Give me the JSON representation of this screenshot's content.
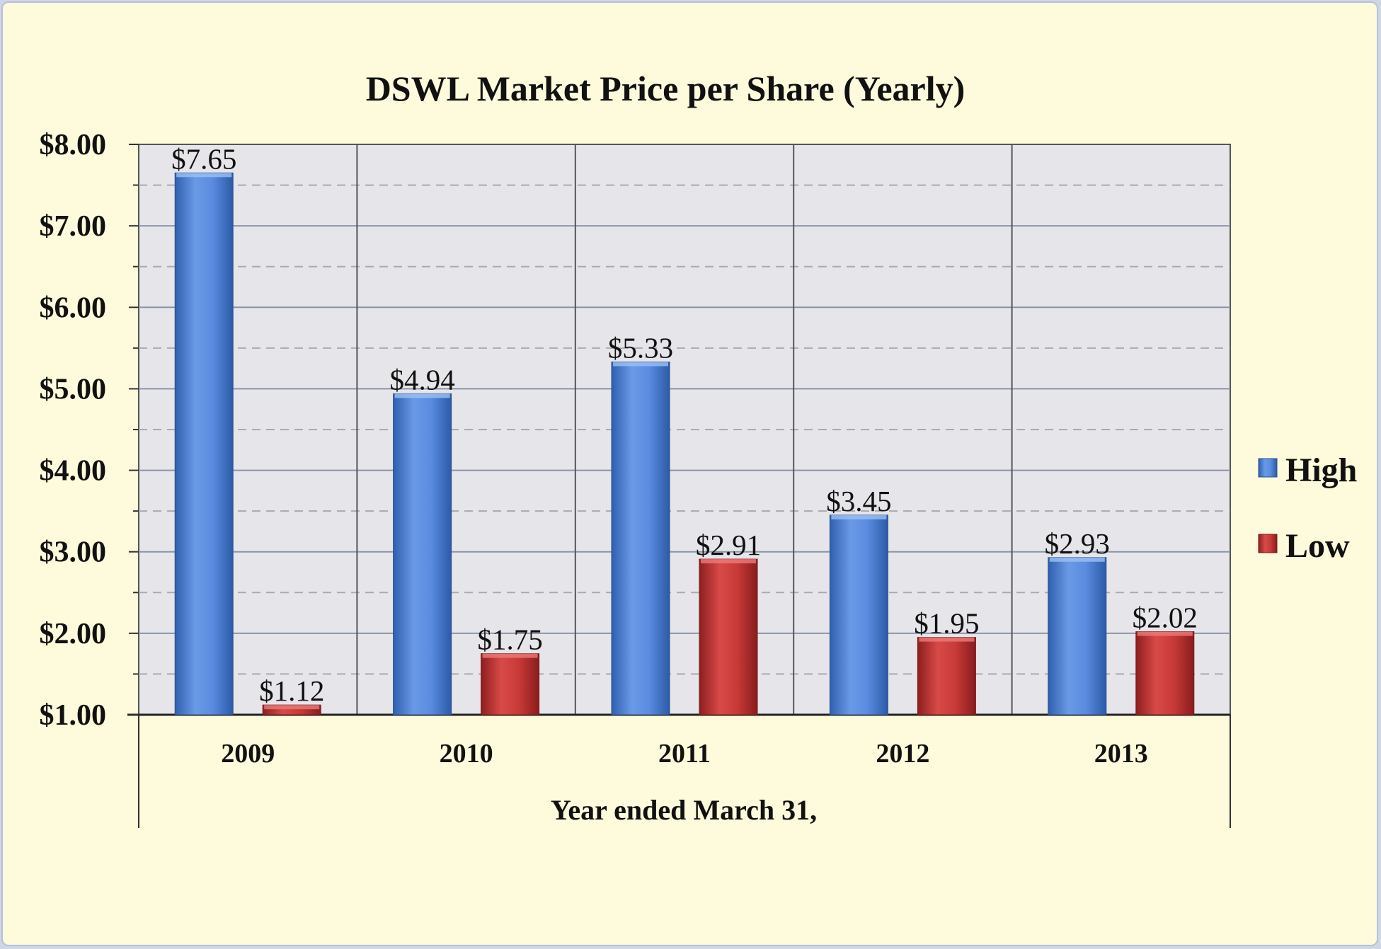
{
  "chart_data": {
    "type": "bar",
    "title": "DSWL Market Price per Share (Yearly)",
    "xlabel": "Year ended March 31,",
    "ylabel": "",
    "categories": [
      "2009",
      "2010",
      "2011",
      "2012",
      "2013"
    ],
    "series": [
      {
        "name": "High",
        "values": [
          7.65,
          4.94,
          5.33,
          3.45,
          2.93
        ],
        "labels": [
          "$7.65",
          "$4.94",
          "$5.33",
          "$3.45",
          "$2.93"
        ],
        "color": "#4a7fd4"
      },
      {
        "name": "Low",
        "values": [
          1.12,
          1.75,
          2.91,
          1.95,
          2.02
        ],
        "labels": [
          "$1.12",
          "$1.75",
          "$2.91",
          "$1.95",
          "$2.02"
        ],
        "color": "#c0302f"
      }
    ],
    "ylim": [
      1,
      8
    ],
    "yticks": [
      1,
      2,
      3,
      4,
      5,
      6,
      7,
      8
    ],
    "ytick_labels": [
      "$1.00",
      "$2.00",
      "$3.00",
      "$4.00",
      "$5.00",
      "$6.00",
      "$7.00",
      "$8.00"
    ],
    "grid": true,
    "legend_position": "right",
    "colors": {
      "plot_background": "#e6e6ea",
      "page_background": "#fdfbdc"
    }
  }
}
